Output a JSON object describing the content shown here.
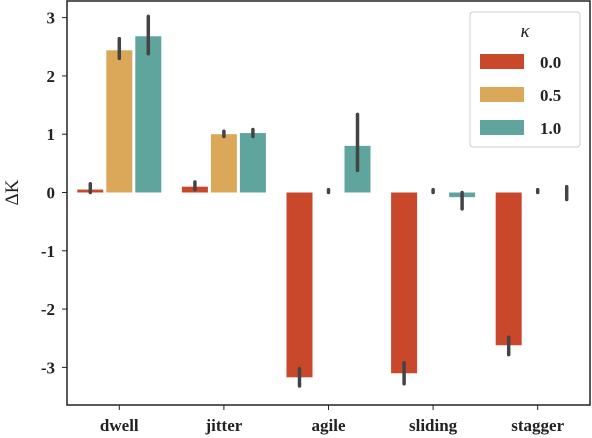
{
  "chart_data": {
    "type": "bar",
    "title": "",
    "xlabel": "",
    "ylabel": "ΔK",
    "ylim": [
      -3.5,
      3.25
    ],
    "yticks": [
      3,
      2,
      1,
      0,
      -1,
      -2,
      -3
    ],
    "ytick_labels": [
      "3",
      "2",
      "1",
      "0",
      "-1",
      "-2",
      "-3"
    ],
    "categories": [
      "dwell",
      "jitter",
      "agile",
      "sliding",
      "stagger"
    ],
    "legend": {
      "title": "κ",
      "position": "top-right"
    },
    "series": [
      {
        "name": "0.0",
        "color": "#c9482b",
        "values": [
          0.05,
          0.1,
          -3.17,
          -3.1,
          -2.62
        ],
        "err_low": [
          0.0,
          0.05,
          -3.32,
          -3.28,
          -2.78
        ],
        "err_high": [
          0.15,
          0.18,
          -3.02,
          -2.92,
          -2.48
        ]
      },
      {
        "name": "0.5",
        "color": "#dba85a",
        "values": [
          2.44,
          1.0,
          0.0,
          0.0,
          0.0
        ],
        "err_low": [
          2.3,
          0.96,
          0.0,
          0.0,
          0.0
        ],
        "err_high": [
          2.64,
          1.05,
          0.05,
          0.05,
          0.05
        ]
      },
      {
        "name": "1.0",
        "color": "#5fa59d",
        "values": [
          2.68,
          1.02,
          0.8,
          -0.08,
          0.0
        ],
        "err_low": [
          2.38,
          0.96,
          0.38,
          -0.28,
          -0.12
        ],
        "err_high": [
          3.02,
          1.08,
          1.34,
          0.0,
          0.1
        ]
      }
    ]
  }
}
